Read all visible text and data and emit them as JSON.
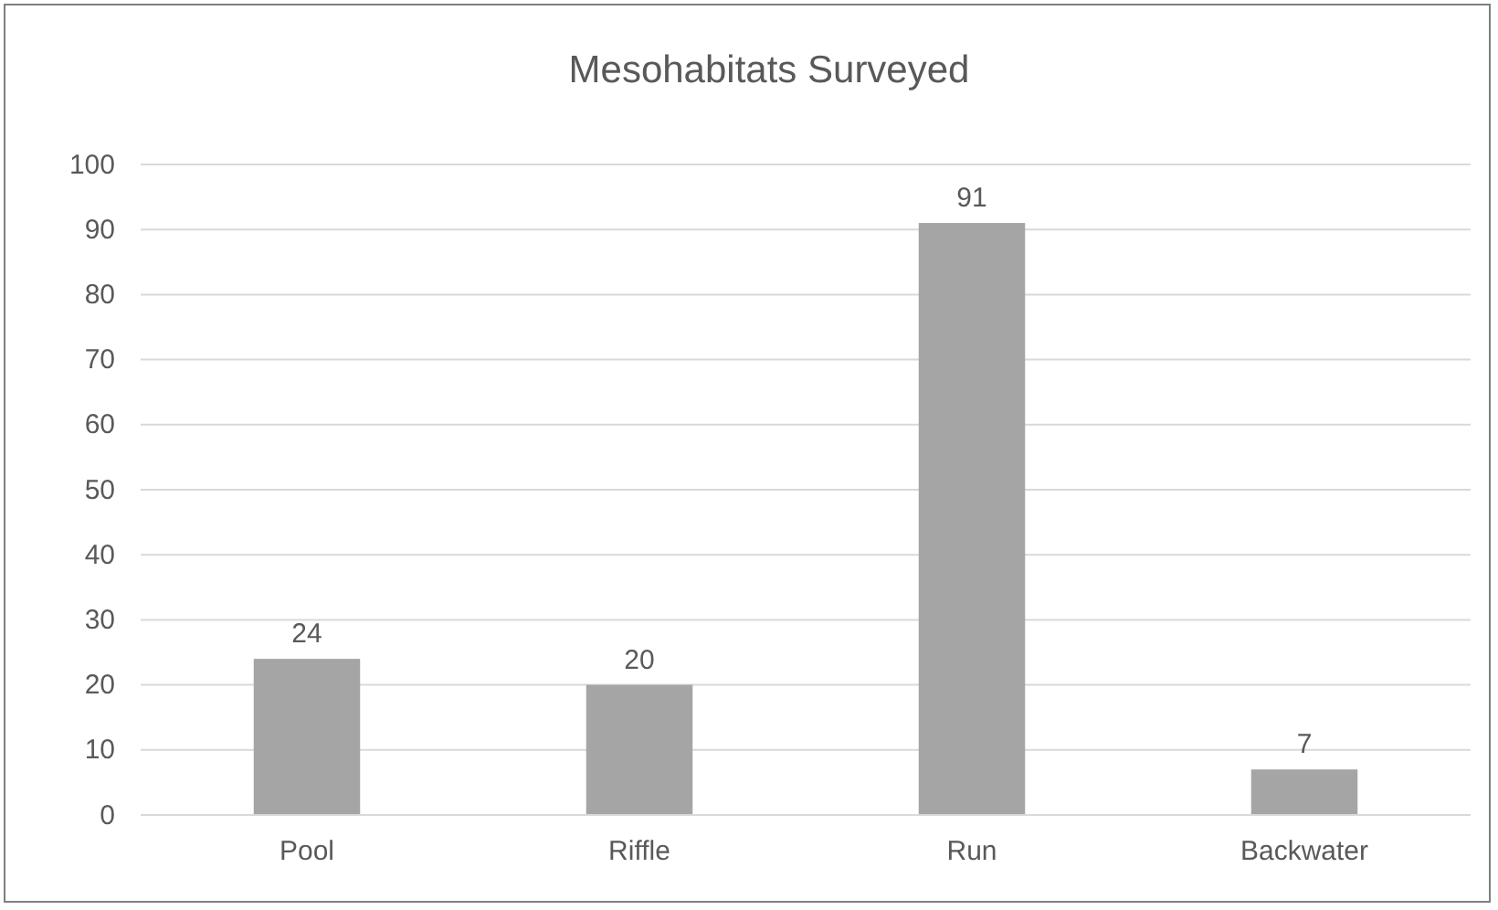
{
  "chart_data": {
    "type": "bar",
    "title": "Mesohabitats Surveyed",
    "categories": [
      "Pool",
      "Riffle",
      "Run",
      "Backwater"
    ],
    "values": [
      24,
      20,
      91,
      7
    ],
    "color": "#a5a5a5",
    "ylim": [
      0,
      100
    ],
    "yticks": [
      0,
      10,
      20,
      30,
      40,
      50,
      60,
      70,
      80,
      90,
      100
    ],
    "grid": "y",
    "data_labels": true
  }
}
